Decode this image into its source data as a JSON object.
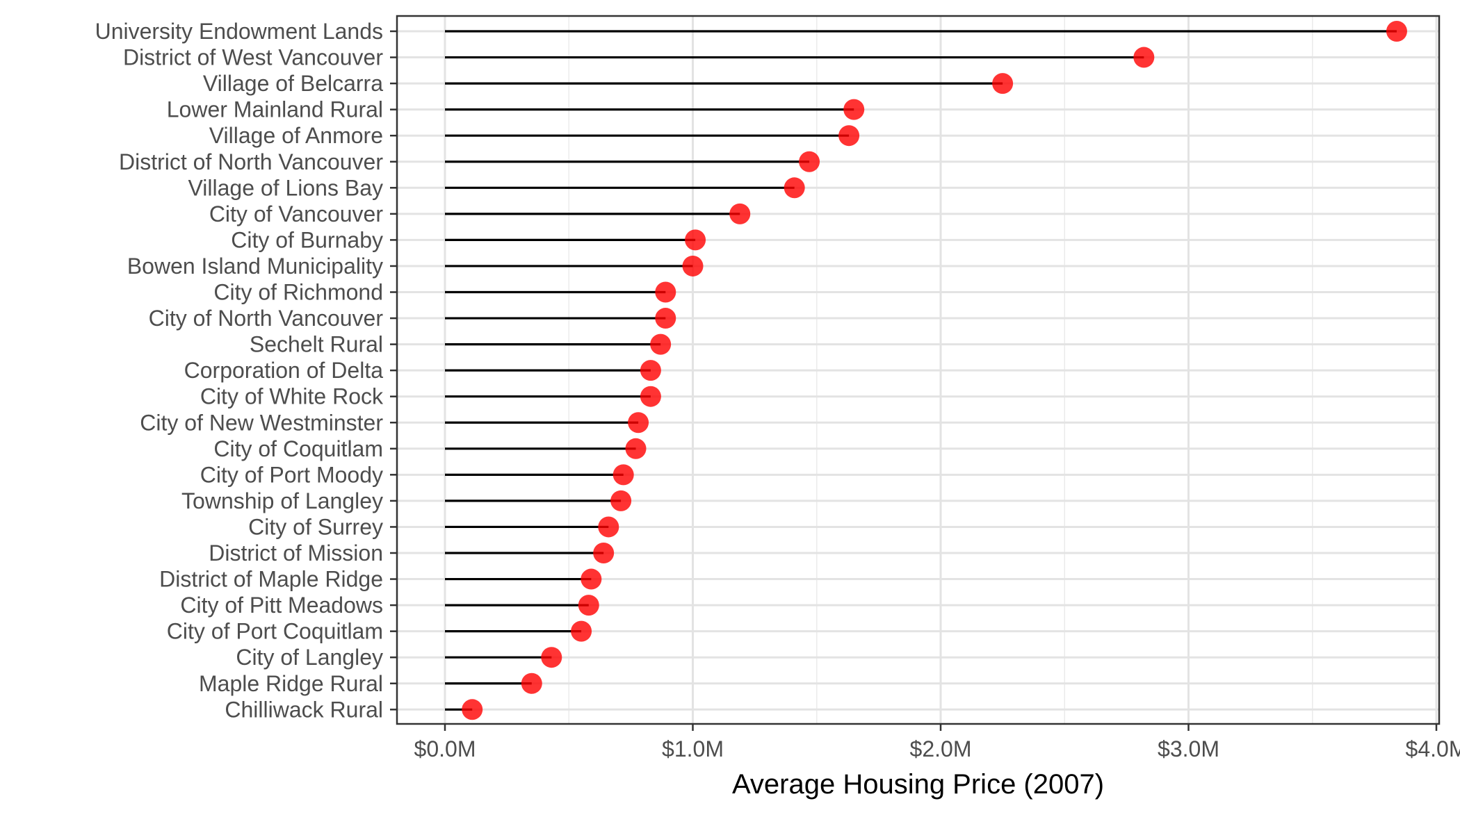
{
  "chart_data": {
    "type": "lollipop",
    "title": "",
    "xlabel": "Average Housing Price (2007)",
    "ylabel": "",
    "xlim": [
      0,
      4.0
    ],
    "x_ticks": [
      0,
      1,
      2,
      3,
      4
    ],
    "x_tick_labels": [
      "$0.0M",
      "$1.0M",
      "$2.0M",
      "$3.0M",
      "$4.0M"
    ],
    "grid": true,
    "point_color": "#ff0000",
    "line_color": "#000000",
    "categories": [
      "University Endowment Lands",
      "District of West Vancouver",
      "Village of Belcarra",
      "Lower Mainland Rural",
      "Village of Anmore",
      "District of North Vancouver",
      "Village of Lions Bay",
      "City of Vancouver",
      "City of Burnaby",
      "Bowen Island Municipality",
      "City of Richmond",
      "City of North Vancouver",
      "Sechelt Rural",
      "Corporation of Delta",
      "City of White Rock",
      "City of New Westminster",
      "City of Coquitlam",
      "City of Port Moody",
      "Township of Langley",
      "City of Surrey",
      "District of Mission",
      "District of Maple Ridge",
      "City of Pitt Meadows",
      "City of Port Coquitlam",
      "City of Langley",
      "Maple Ridge Rural",
      "Chilliwack Rural"
    ],
    "values": [
      3.84,
      2.82,
      2.25,
      1.65,
      1.63,
      1.47,
      1.41,
      1.19,
      1.01,
      1.0,
      0.89,
      0.89,
      0.87,
      0.83,
      0.83,
      0.78,
      0.77,
      0.72,
      0.71,
      0.66,
      0.64,
      0.59,
      0.58,
      0.55,
      0.43,
      0.35,
      0.11
    ]
  }
}
